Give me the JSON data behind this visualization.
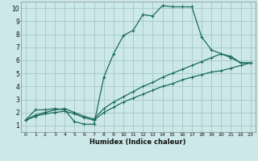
{
  "title": "",
  "xlabel": "Humidex (Indice chaleur)",
  "ylabel": "",
  "xlim": [
    -0.5,
    23.5
  ],
  "ylim": [
    0.5,
    10.5
  ],
  "xticks": [
    0,
    1,
    2,
    3,
    4,
    5,
    6,
    7,
    8,
    9,
    10,
    11,
    12,
    13,
    14,
    15,
    16,
    17,
    18,
    19,
    20,
    21,
    22,
    23
  ],
  "yticks": [
    1,
    2,
    3,
    4,
    5,
    6,
    7,
    8,
    9,
    10
  ],
  "bg_color": "#cce8e8",
  "grid_color": "#aacccc",
  "line_color": "#1a6b5a",
  "line1_x": [
    0,
    1,
    2,
    3,
    4,
    5,
    6,
    7,
    8,
    9,
    10,
    11,
    12,
    13,
    14,
    15,
    16,
    17,
    18,
    19,
    20,
    21,
    22,
    23
  ],
  "line1_y": [
    1.4,
    2.2,
    2.2,
    2.3,
    2.2,
    1.3,
    1.1,
    1.1,
    4.7,
    6.5,
    7.9,
    8.3,
    9.5,
    9.4,
    10.2,
    10.1,
    10.1,
    10.1,
    7.8,
    6.8,
    6.5,
    6.2,
    5.8,
    5.8
  ],
  "line2_x": [
    0,
    1,
    2,
    3,
    4,
    5,
    6,
    7,
    8,
    9,
    10,
    11,
    12,
    13,
    14,
    15,
    16,
    17,
    18,
    19,
    20,
    21,
    22,
    23
  ],
  "line2_y": [
    1.4,
    1.8,
    2.0,
    2.2,
    2.3,
    2.0,
    1.7,
    1.5,
    2.3,
    2.8,
    3.2,
    3.6,
    4.0,
    4.3,
    4.7,
    5.0,
    5.3,
    5.6,
    5.9,
    6.2,
    6.5,
    6.3,
    5.8,
    5.8
  ],
  "line3_x": [
    0,
    1,
    2,
    3,
    4,
    5,
    6,
    7,
    8,
    9,
    10,
    11,
    12,
    13,
    14,
    15,
    16,
    17,
    18,
    19,
    20,
    21,
    22,
    23
  ],
  "line3_y": [
    1.4,
    1.7,
    1.9,
    2.0,
    2.1,
    1.9,
    1.6,
    1.4,
    2.0,
    2.4,
    2.8,
    3.1,
    3.4,
    3.7,
    4.0,
    4.2,
    4.5,
    4.7,
    4.9,
    5.1,
    5.2,
    5.4,
    5.6,
    5.8
  ]
}
